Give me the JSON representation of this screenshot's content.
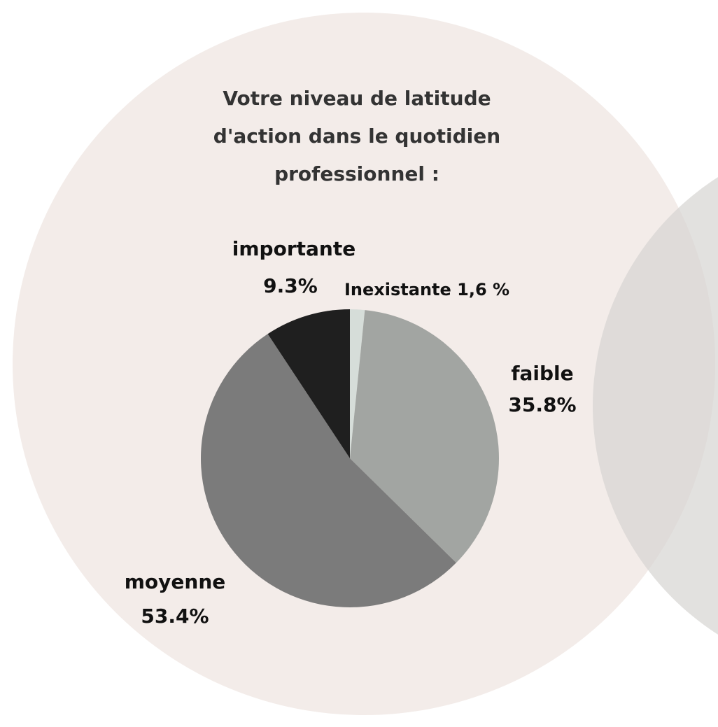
{
  "chart_data": {
    "type": "pie",
    "title": [
      "Votre niveau de latitude",
      "d'action dans le quotidien",
      "professionnel  :"
    ],
    "categories": [
      "Inexistante",
      "faible",
      "moyenne",
      "importante"
    ],
    "values": [
      1.6,
      35.8,
      53.4,
      9.3
    ],
    "value_labels": [
      "1,6 %",
      "35.8%",
      "53.4%",
      "9.3%"
    ],
    "colors": [
      "#d6ddd9",
      "#a2a5a2",
      "#7b7b7b",
      "#1f1f1f"
    ]
  }
}
